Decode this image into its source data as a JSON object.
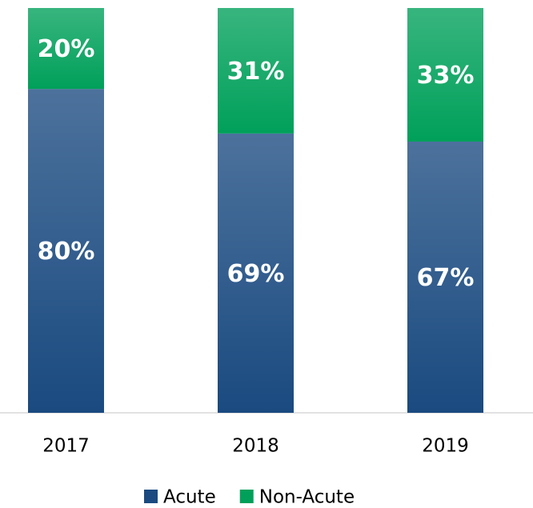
{
  "chart_data": {
    "type": "stacked_bar",
    "categories": [
      "2017",
      "2018",
      "2019"
    ],
    "series": [
      {
        "name": "Acute",
        "color": "#1a4a80",
        "values": [
          80,
          69,
          67
        ],
        "value_labels": [
          "80%",
          "69%",
          "67%"
        ]
      },
      {
        "name": "Non-Acute",
        "color": "#00a05a",
        "values": [
          20,
          31,
          33
        ],
        "value_labels": [
          "20%",
          "31%",
          "33%"
        ]
      }
    ],
    "ylim": [
      0,
      100
    ],
    "legend": "bottom"
  }
}
